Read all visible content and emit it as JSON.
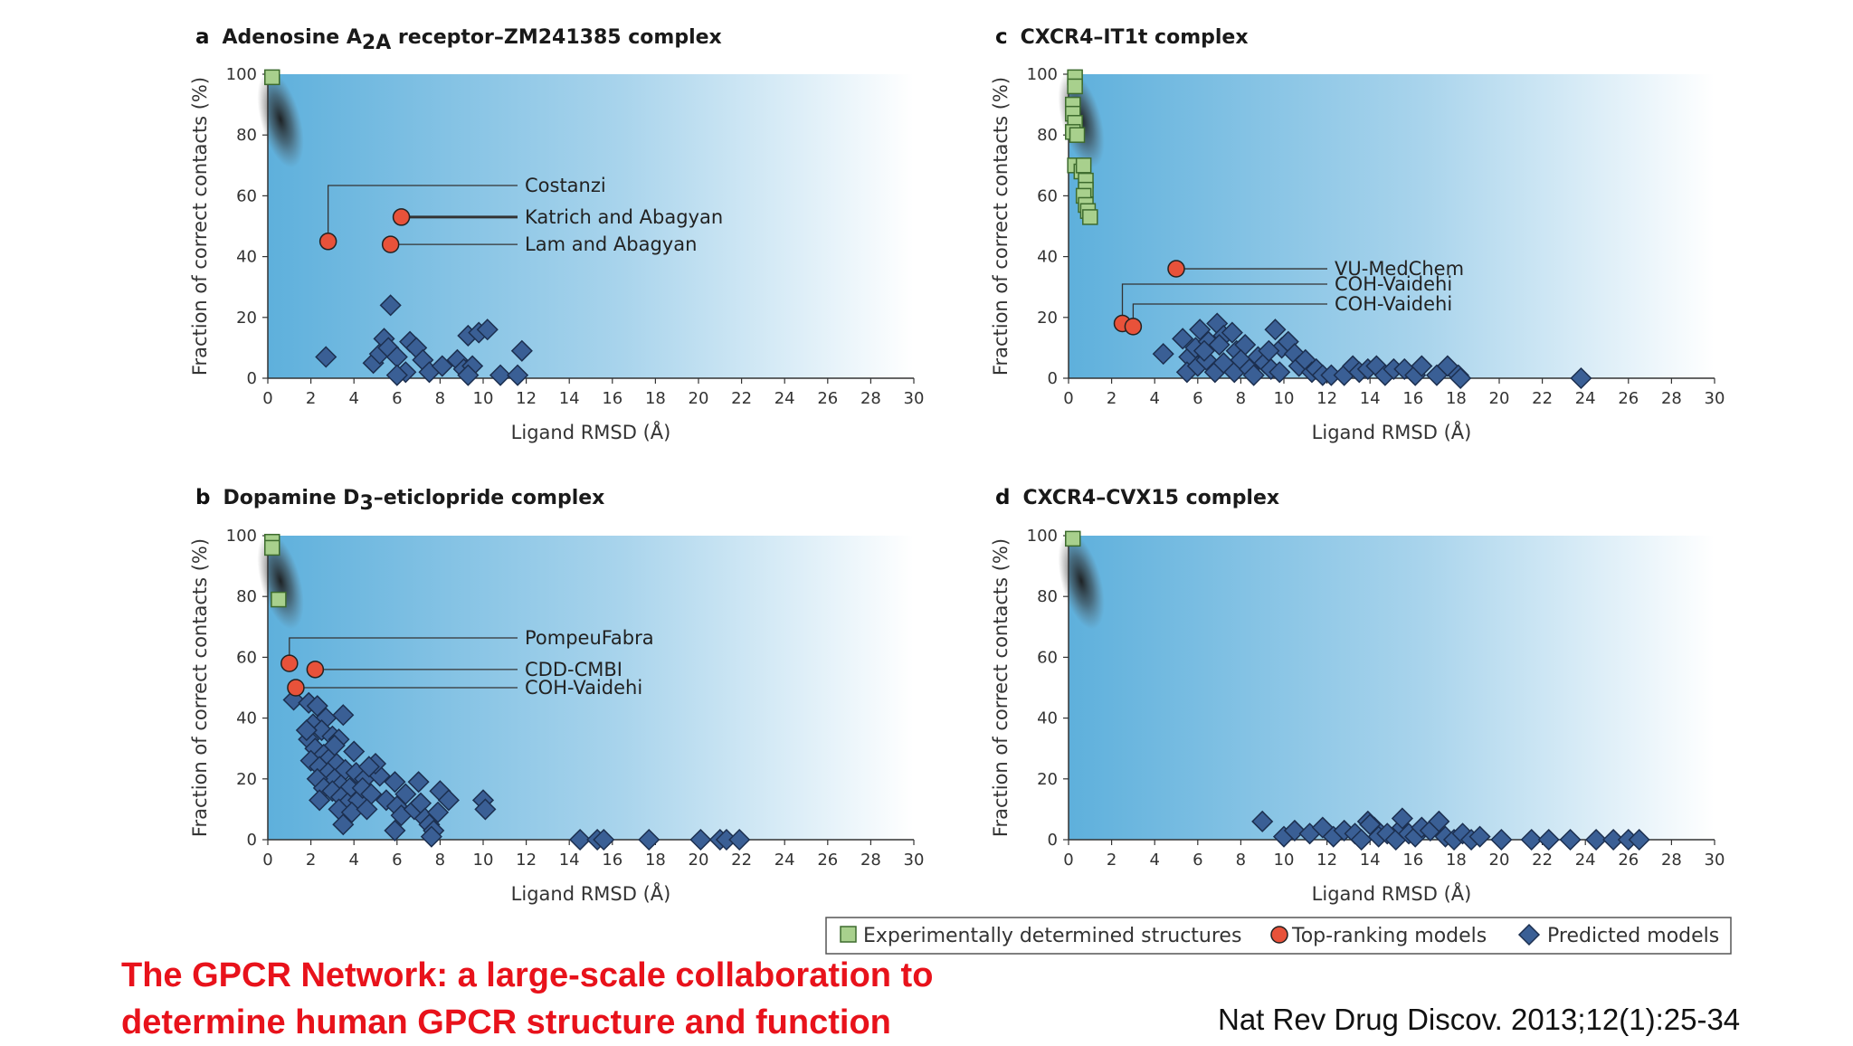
{
  "slide": {
    "title_line1": "The GPCR Network: a large-scale collaboration to",
    "title_line2": "determine human GPCR structure and function",
    "citation": "Nat Rev Drug Discov. 2013;12(1):25-34"
  },
  "legend": {
    "experimental": "Experimentally determined structures",
    "top_ranking": "Top-ranking models",
    "predicted": "Predicted models"
  },
  "colors": {
    "experimental": "#a8d08d",
    "top_ranking": "#e8523a",
    "predicted": "#3a5f95",
    "plot_bg_left": "#5eb0dc",
    "plot_bg_right": "#ffffff"
  },
  "chart_data": [
    {
      "id": "a",
      "type": "scatter",
      "letter": "a",
      "title": "Adenosine A2A receptor–ZM241385 complex",
      "title_parts": {
        "prefix": "Adenosine A",
        "sub": "2A",
        "suffix": " receptor–ZM241385 complex"
      },
      "xlabel": "Ligand RMSD (Å)",
      "ylabel": "Fraction of correct contacts (%)",
      "xlim": [
        0,
        30
      ],
      "ylim": [
        0,
        100
      ],
      "xticks": [
        "0",
        "2",
        "4",
        "6",
        "8",
        "10",
        "12",
        "14",
        "16",
        "18",
        "20",
        "22",
        "24",
        "26",
        "28",
        "30"
      ],
      "yticks": [
        "0",
        "20",
        "40",
        "60",
        "80",
        "100"
      ],
      "experimental": [
        {
          "x": 0.2,
          "y": 99
        }
      ],
      "top_ranking": [
        {
          "x": 2.8,
          "y": 45,
          "label": "Costanzi"
        },
        {
          "x": 6.2,
          "y": 53,
          "label": "Katrich and Abagyan"
        },
        {
          "x": 5.7,
          "y": 44,
          "label": "Lam and Abagyan"
        }
      ],
      "annotation_order": [
        "Costanzi",
        "Katrich and Abagyan",
        "Lam and Abagyan"
      ],
      "predicted": [
        [
          2.7,
          7
        ],
        [
          4.9,
          5
        ],
        [
          5.2,
          8
        ],
        [
          5.4,
          13
        ],
        [
          5.7,
          24
        ],
        [
          5.6,
          10
        ],
        [
          6.0,
          7
        ],
        [
          6.4,
          2
        ],
        [
          6.6,
          12
        ],
        [
          6.9,
          10
        ],
        [
          7.2,
          6
        ],
        [
          7.5,
          2
        ],
        [
          8.1,
          4
        ],
        [
          8.8,
          6
        ],
        [
          9.1,
          3
        ],
        [
          9.3,
          14
        ],
        [
          9.5,
          4
        ],
        [
          9.8,
          15
        ],
        [
          10.2,
          16
        ],
        [
          9.3,
          1
        ],
        [
          10.8,
          1
        ],
        [
          11.6,
          1
        ],
        [
          11.8,
          9
        ],
        [
          6.0,
          1
        ]
      ]
    },
    {
      "id": "b",
      "type": "scatter",
      "letter": "b",
      "title": "Dopamine D3–eticlopride complex",
      "title_parts": {
        "prefix": "Dopamine D",
        "sub": "3",
        "suffix": "–eticlopride complex"
      },
      "xlabel": "Ligand RMSD (Å)",
      "ylabel": "Fraction of correct contacts (%)",
      "xlim": [
        0,
        30
      ],
      "ylim": [
        0,
        100
      ],
      "xticks": [
        "0",
        "2",
        "4",
        "6",
        "8",
        "10",
        "12",
        "14",
        "16",
        "18",
        "20",
        "22",
        "24",
        "26",
        "28",
        "30"
      ],
      "yticks": [
        "0",
        "20",
        "40",
        "60",
        "80",
        "100"
      ],
      "experimental": [
        {
          "x": 0.2,
          "y": 98
        },
        {
          "x": 0.2,
          "y": 96
        },
        {
          "x": 0.5,
          "y": 79
        }
      ],
      "top_ranking": [
        {
          "x": 1.0,
          "y": 58,
          "label": "PompeuFabra"
        },
        {
          "x": 2.2,
          "y": 56,
          "label": "CDD-CMBI"
        },
        {
          "x": 1.3,
          "y": 50,
          "label": "COH-Vaidehi"
        }
      ],
      "annotation_order": [
        "PompeuFabra",
        "CDD-CMBI",
        "COH-Vaidehi"
      ],
      "predicted": [
        [
          1.2,
          46
        ],
        [
          1.9,
          45
        ],
        [
          2.3,
          44
        ],
        [
          2.7,
          40
        ],
        [
          3.5,
          41
        ],
        [
          2.1,
          38
        ],
        [
          2.5,
          36
        ],
        [
          3.0,
          34
        ],
        [
          3.3,
          33
        ],
        [
          4.0,
          29
        ],
        [
          1.9,
          33
        ],
        [
          2.2,
          30
        ],
        [
          2.6,
          28
        ],
        [
          2.9,
          27
        ],
        [
          3.2,
          25
        ],
        [
          3.6,
          23
        ],
        [
          4.1,
          22
        ],
        [
          4.5,
          20
        ],
        [
          2.0,
          26
        ],
        [
          2.4,
          24
        ],
        [
          2.8,
          22
        ],
        [
          3.1,
          20
        ],
        [
          3.4,
          18
        ],
        [
          3.8,
          17
        ],
        [
          2.3,
          20
        ],
        [
          2.6,
          17
        ],
        [
          3.0,
          16
        ],
        [
          3.4,
          14
        ],
        [
          3.7,
          12
        ],
        [
          4.2,
          13
        ],
        [
          2.4,
          13
        ],
        [
          3.3,
          10
        ],
        [
          3.9,
          9
        ],
        [
          3.5,
          5
        ],
        [
          4.4,
          17
        ],
        [
          4.8,
          15
        ],
        [
          5.2,
          21
        ],
        [
          5.5,
          13
        ],
        [
          5.9,
          19
        ],
        [
          6.0,
          11
        ],
        [
          6.2,
          8
        ],
        [
          6.4,
          15
        ],
        [
          6.8,
          10
        ],
        [
          7.1,
          12
        ],
        [
          7.0,
          19
        ],
        [
          7.3,
          7
        ],
        [
          7.5,
          5
        ],
        [
          7.7,
          3
        ],
        [
          7.9,
          9
        ],
        [
          8.0,
          16
        ],
        [
          8.4,
          13
        ],
        [
          5.9,
          3
        ],
        [
          7.6,
          1
        ],
        [
          10.0,
          13
        ],
        [
          10.1,
          10
        ],
        [
          14.5,
          0
        ],
        [
          15.3,
          0
        ],
        [
          15.6,
          0
        ],
        [
          17.7,
          0
        ],
        [
          20.1,
          0
        ],
        [
          21.0,
          0
        ],
        [
          21.3,
          0
        ],
        [
          21.9,
          0
        ],
        [
          4.6,
          10
        ],
        [
          5.0,
          25
        ],
        [
          4.7,
          24
        ],
        [
          3.1,
          31
        ],
        [
          1.8,
          36
        ]
      ]
    },
    {
      "id": "c",
      "type": "scatter",
      "letter": "c",
      "title": "CXCR4–IT1t complex",
      "title_parts": {
        "prefix": "CXCR4–IT1t complex",
        "sub": "",
        "suffix": ""
      },
      "xlabel": "Ligand RMSD (Å)",
      "ylabel": "Fraction of correct contacts (%)",
      "xlim": [
        0,
        30
      ],
      "ylim": [
        0,
        100
      ],
      "xticks": [
        "0",
        "2",
        "4",
        "6",
        "8",
        "10",
        "12",
        "14",
        "16",
        "18",
        "20",
        "22",
        "24",
        "26",
        "28",
        "30"
      ],
      "yticks": [
        "0",
        "20",
        "40",
        "60",
        "80",
        "100"
      ],
      "experimental": [
        {
          "x": 0.3,
          "y": 99
        },
        {
          "x": 0.3,
          "y": 96
        },
        {
          "x": 0.2,
          "y": 90
        },
        {
          "x": 0.2,
          "y": 87
        },
        {
          "x": 0.3,
          "y": 84
        },
        {
          "x": 0.2,
          "y": 81
        },
        {
          "x": 0.4,
          "y": 80
        },
        {
          "x": 0.3,
          "y": 70
        },
        {
          "x": 0.6,
          "y": 68
        },
        {
          "x": 0.7,
          "y": 70
        },
        {
          "x": 0.8,
          "y": 65
        },
        {
          "x": 0.8,
          "y": 62
        },
        {
          "x": 0.7,
          "y": 60
        },
        {
          "x": 0.8,
          "y": 57
        },
        {
          "x": 0.9,
          "y": 55
        },
        {
          "x": 1.0,
          "y": 53
        }
      ],
      "top_ranking": [
        {
          "x": 5.0,
          "y": 36,
          "label": "VU-MedChem"
        },
        {
          "x": 2.5,
          "y": 18,
          "label": "COH-Vaidehi"
        },
        {
          "x": 3.0,
          "y": 17,
          "label": "COH-Vaidehi"
        }
      ],
      "annotation_order": [
        "VU-MedChem",
        "COH-Vaidehi",
        "COH-Vaidehi"
      ],
      "predicted": [
        [
          4.4,
          8
        ],
        [
          5.3,
          13
        ],
        [
          5.6,
          7
        ],
        [
          5.9,
          10
        ],
        [
          6.1,
          16
        ],
        [
          6.5,
          12
        ],
        [
          6.9,
          18
        ],
        [
          7.2,
          14
        ],
        [
          7.6,
          15
        ],
        [
          7.8,
          9
        ],
        [
          8.2,
          11
        ],
        [
          5.5,
          2
        ],
        [
          6.0,
          4
        ],
        [
          6.4,
          6
        ],
        [
          6.8,
          2
        ],
        [
          7.2,
          5
        ],
        [
          7.7,
          2
        ],
        [
          8.0,
          6
        ],
        [
          8.4,
          3
        ],
        [
          8.8,
          7
        ],
        [
          9.1,
          5
        ],
        [
          9.4,
          3
        ],
        [
          9.8,
          2
        ],
        [
          9.6,
          16
        ],
        [
          9.9,
          10
        ],
        [
          10.2,
          12
        ],
        [
          10.5,
          8
        ],
        [
          10.7,
          4
        ],
        [
          11.0,
          6
        ],
        [
          11.3,
          2
        ],
        [
          11.5,
          3
        ],
        [
          11.8,
          1
        ],
        [
          12.2,
          1
        ],
        [
          12.8,
          1
        ],
        [
          13.2,
          4
        ],
        [
          13.5,
          2
        ],
        [
          13.9,
          3
        ],
        [
          14.3,
          4
        ],
        [
          14.7,
          1
        ],
        [
          15.1,
          3
        ],
        [
          15.6,
          3
        ],
        [
          16.1,
          1
        ],
        [
          16.4,
          4
        ],
        [
          17.1,
          1
        ],
        [
          17.6,
          4
        ],
        [
          18.1,
          1
        ],
        [
          18.2,
          0
        ],
        [
          23.8,
          0
        ],
        [
          6.3,
          9
        ],
        [
          7.0,
          11
        ],
        [
          8.6,
          1
        ],
        [
          9.3,
          9
        ]
      ]
    },
    {
      "id": "d",
      "type": "scatter",
      "letter": "d",
      "title": "CXCR4–CVX15 complex",
      "title_parts": {
        "prefix": "CXCR4–CVX15 complex",
        "sub": "",
        "suffix": ""
      },
      "xlabel": "Ligand RMSD (Å)",
      "ylabel": "Fraction of correct contacts (%)",
      "xlim": [
        0,
        30
      ],
      "ylim": [
        0,
        100
      ],
      "xticks": [
        "0",
        "2",
        "4",
        "6",
        "8",
        "10",
        "12",
        "14",
        "16",
        "18",
        "20",
        "22",
        "24",
        "26",
        "28",
        "30"
      ],
      "yticks": [
        "0",
        "20",
        "40",
        "60",
        "80",
        "100"
      ],
      "experimental": [
        {
          "x": 0.2,
          "y": 99
        }
      ],
      "top_ranking": [],
      "annotation_order": [],
      "predicted": [
        [
          9.0,
          6
        ],
        [
          10.0,
          1
        ],
        [
          10.5,
          3
        ],
        [
          11.2,
          2
        ],
        [
          11.8,
          4
        ],
        [
          12.3,
          1
        ],
        [
          12.8,
          3
        ],
        [
          13.3,
          2
        ],
        [
          13.6,
          0
        ],
        [
          13.9,
          6
        ],
        [
          14.2,
          4
        ],
        [
          14.4,
          1
        ],
        [
          14.8,
          2
        ],
        [
          15.2,
          0
        ],
        [
          15.5,
          4
        ],
        [
          15.8,
          2
        ],
        [
          16.1,
          1
        ],
        [
          16.4,
          4
        ],
        [
          16.8,
          3
        ],
        [
          17.2,
          6
        ],
        [
          17.5,
          1
        ],
        [
          17.9,
          0
        ],
        [
          18.3,
          2
        ],
        [
          18.7,
          0
        ],
        [
          19.1,
          1
        ],
        [
          20.1,
          0
        ],
        [
          21.5,
          0
        ],
        [
          22.3,
          0
        ],
        [
          23.3,
          0
        ],
        [
          24.5,
          0
        ],
        [
          25.3,
          0
        ],
        [
          26.0,
          0
        ],
        [
          26.5,
          0
        ],
        [
          15.5,
          7
        ],
        [
          14.0,
          5
        ]
      ]
    }
  ]
}
